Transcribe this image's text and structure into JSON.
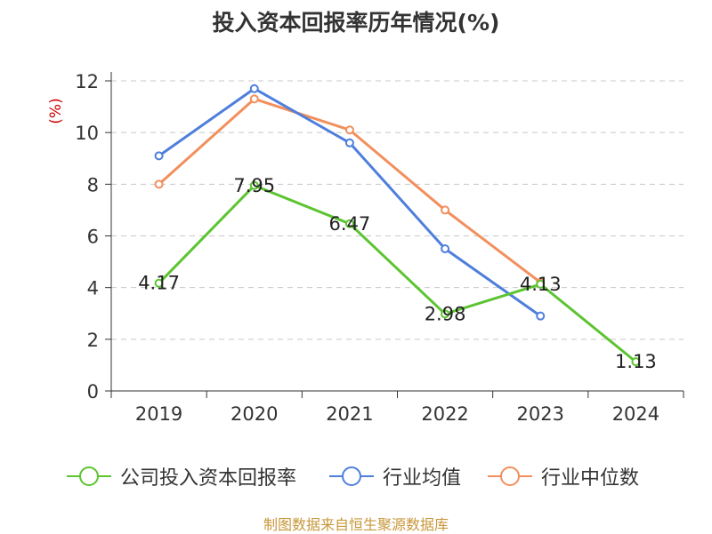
{
  "title": "投入资本回报率历年情况(%)",
  "footer": "制图数据来自恒生聚源数据库",
  "colors": {
    "company": "#5cc431",
    "industry_avg": "#4f7fdb",
    "industry_median": "#f28f5d",
    "ylabel": "#cc0000",
    "footer": "#c8973a"
  },
  "chart_data": {
    "type": "line",
    "title": "投入资本回报率历年情况(%)",
    "xlabel": "",
    "ylabel": "(%)",
    "ylim": [
      0,
      12
    ],
    "yticks": [
      0,
      2,
      4,
      6,
      8,
      10,
      12
    ],
    "categories": [
      "2019",
      "2020",
      "2021",
      "2022",
      "2023",
      "2024"
    ],
    "grid": true,
    "legend_position": "bottom",
    "series": [
      {
        "name": "公司投入资本回报率",
        "color": "#5cc431",
        "values": [
          4.17,
          7.95,
          6.47,
          2.98,
          4.13,
          1.13
        ],
        "show_labels": true,
        "labels": [
          "4.17",
          "7.95",
          "6.47",
          "2.98",
          "4.13",
          "1.13"
        ]
      },
      {
        "name": "行业均值",
        "color": "#4f7fdb",
        "values": [
          9.1,
          11.7,
          9.6,
          5.5,
          2.9,
          null
        ],
        "show_labels": false
      },
      {
        "name": "行业中位数",
        "color": "#f28f5d",
        "values": [
          8.0,
          11.3,
          10.1,
          7.0,
          4.2,
          null
        ],
        "show_labels": false
      }
    ]
  }
}
